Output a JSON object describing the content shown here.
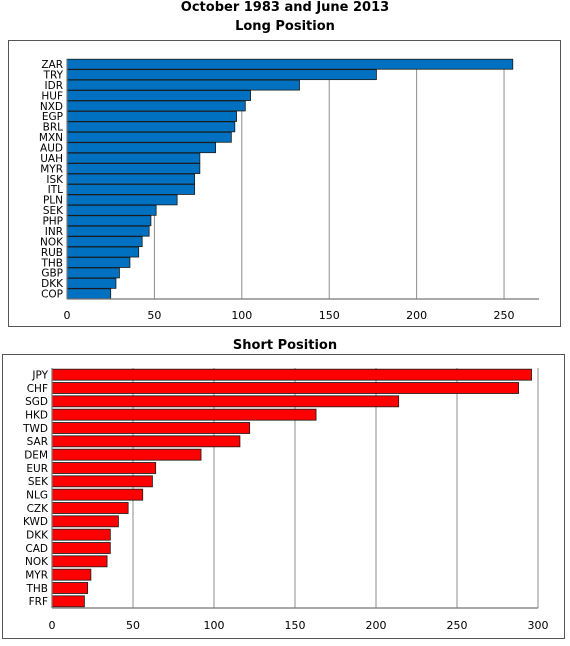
{
  "header": {
    "title_line1": "October 1983 and June 2013"
  },
  "chart_data": [
    {
      "type": "bar",
      "orientation": "horizontal",
      "title": "Long Position",
      "color": "#0070C0",
      "categories": [
        "ZAR",
        "TRY",
        "IDR",
        "HUF",
        "NXD",
        "EGP",
        "BRL",
        "MXN",
        "AUD",
        "UAH",
        "MYR",
        "ISK",
        "ITL",
        "PLN",
        "SEK",
        "PHP",
        "INR",
        "NOK",
        "RUB",
        "THB",
        "GBP",
        "DKK",
        "COP"
      ],
      "values": [
        255,
        177,
        133,
        105,
        102,
        97,
        96,
        94,
        85,
        76,
        76,
        73,
        73,
        63,
        51,
        48,
        47,
        43,
        41,
        36,
        30,
        28,
        25
      ],
      "xlim": [
        0,
        270
      ],
      "xticks": [
        0,
        50,
        100,
        150,
        200,
        250
      ],
      "grid": true
    },
    {
      "type": "bar",
      "orientation": "horizontal",
      "title": "Short Position",
      "color": "#FF0000",
      "categories": [
        "JPY",
        "CHF",
        "SGD",
        "HKD",
        "TWD",
        "SAR",
        "DEM",
        "EUR",
        "SEK",
        "NLG",
        "CZK",
        "KWD",
        "DKK",
        "CAD",
        "NOK",
        "MYR",
        "THB",
        "FRF"
      ],
      "values": [
        296,
        288,
        214,
        163,
        122,
        116,
        92,
        64,
        62,
        56,
        47,
        41,
        36,
        36,
        34,
        24,
        22,
        20
      ],
      "xlim": [
        0,
        300
      ],
      "xticks": [
        0,
        50,
        100,
        150,
        200,
        250,
        300
      ],
      "grid": true
    }
  ]
}
